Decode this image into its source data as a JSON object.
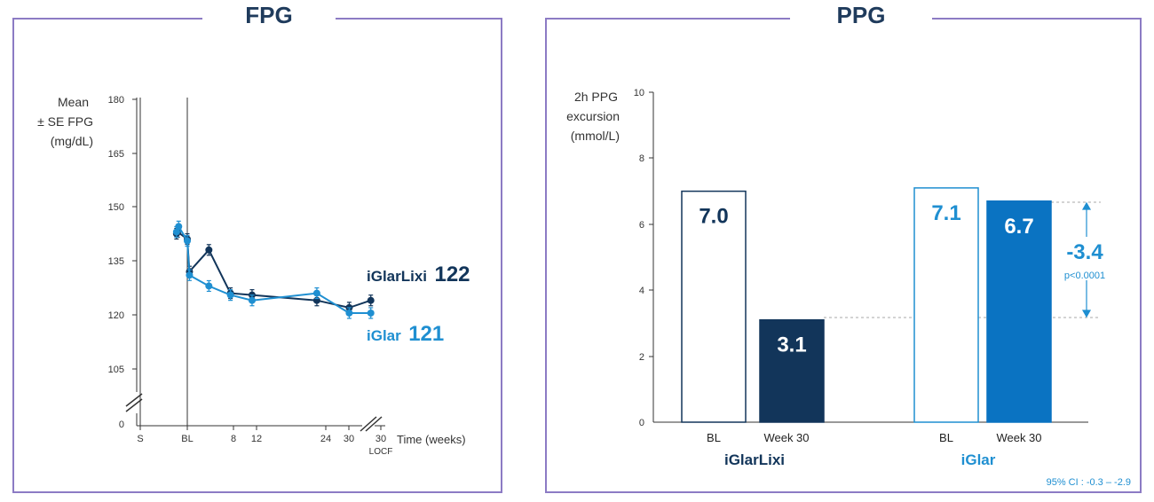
{
  "colors": {
    "frame": "#8c7bc4",
    "title": "#1f3b5c",
    "iglarlixi": "#12355a",
    "iglar": "#1f8fd1",
    "iglar_bar": "#0a73c2",
    "axis": "#333333"
  },
  "fpg": {
    "title": "FPG",
    "ylabel_lines": [
      "Mean",
      "± SE FPG",
      "(mg/dL)"
    ],
    "xlabel": "Time (weeks)",
    "yticks": [
      "180",
      "165",
      "150",
      "135",
      "120",
      "105",
      "0"
    ],
    "xticks": [
      "S",
      "BL",
      "8",
      "12",
      "24",
      "30",
      "30"
    ],
    "locf_label": "LOCF",
    "series_label_iglarlixi": "iGlarLixi",
    "series_value_iglarlixi": "122",
    "series_label_iglar": "iGlar",
    "series_value_iglar": "121"
  },
  "ppg": {
    "title": "PPG",
    "ylabel_lines": [
      "2h PPG",
      "excursion",
      "(mmol/L)"
    ],
    "yticks": [
      "10",
      "8",
      "6",
      "4",
      "2",
      "0"
    ],
    "bar_categories": [
      "BL",
      "Week 30",
      "BL",
      "Week 30"
    ],
    "group_labels": [
      "iGlarLixi",
      "iGlar"
    ],
    "diff_label": "-3.4",
    "p_label": "p<0.0001",
    "ci_label": "95% CI : -0.3 – -2.9"
  },
  "chart_data": [
    {
      "type": "line",
      "title": "FPG",
      "xlabel": "Time (weeks)",
      "ylabel": "Mean ± SE FPG (mg/dL)",
      "ylim": [
        0,
        180
      ],
      "yticks": [
        0,
        105,
        120,
        135,
        150,
        165,
        180
      ],
      "x_tick_labels": [
        "S",
        "BL",
        "8",
        "12",
        "24",
        "30",
        "30 LOCF"
      ],
      "x": [
        -2,
        0,
        4,
        8,
        12,
        24,
        30
      ],
      "x_tick_positions": [
        -2,
        0,
        8,
        12,
        24,
        30,
        34
      ],
      "series": [
        {
          "name": "iGlarLixi",
          "x": [
            -2,
            -1.8,
            0,
            0.4,
            4,
            8,
            12,
            24,
            30,
            34
          ],
          "y": [
            142.5,
            143,
            141,
            132,
            138,
            126,
            125.5,
            124,
            122,
            124
          ]
        },
        {
          "name": "iGlar",
          "x": [
            -2,
            -1.6,
            0,
            0.4,
            4,
            8,
            12,
            24,
            30,
            34
          ],
          "y": [
            143,
            144.5,
            140.5,
            131,
            128,
            125.5,
            124,
            126,
            120.5,
            120.5
          ]
        }
      ],
      "end_labels": {
        "iGlarLixi": 122,
        "iGlar": 121
      }
    },
    {
      "type": "bar",
      "title": "PPG",
      "ylabel": "2h PPG excursion (mmol/L)",
      "ylim": [
        0,
        10
      ],
      "categories": [
        "BL",
        "Week 30",
        "BL",
        "Week 30"
      ],
      "groups": [
        "iGlarLixi",
        "iGlarLixi",
        "iGlar",
        "iGlar"
      ],
      "values": [
        7.0,
        3.1,
        7.1,
        6.7
      ],
      "fills": [
        "none",
        "#12355a",
        "none",
        "#0a73c2"
      ],
      "annotation": {
        "difference": -3.4,
        "p": "p<0.0001",
        "ci": "95% CI : -0.3 – -2.9"
      }
    }
  ]
}
